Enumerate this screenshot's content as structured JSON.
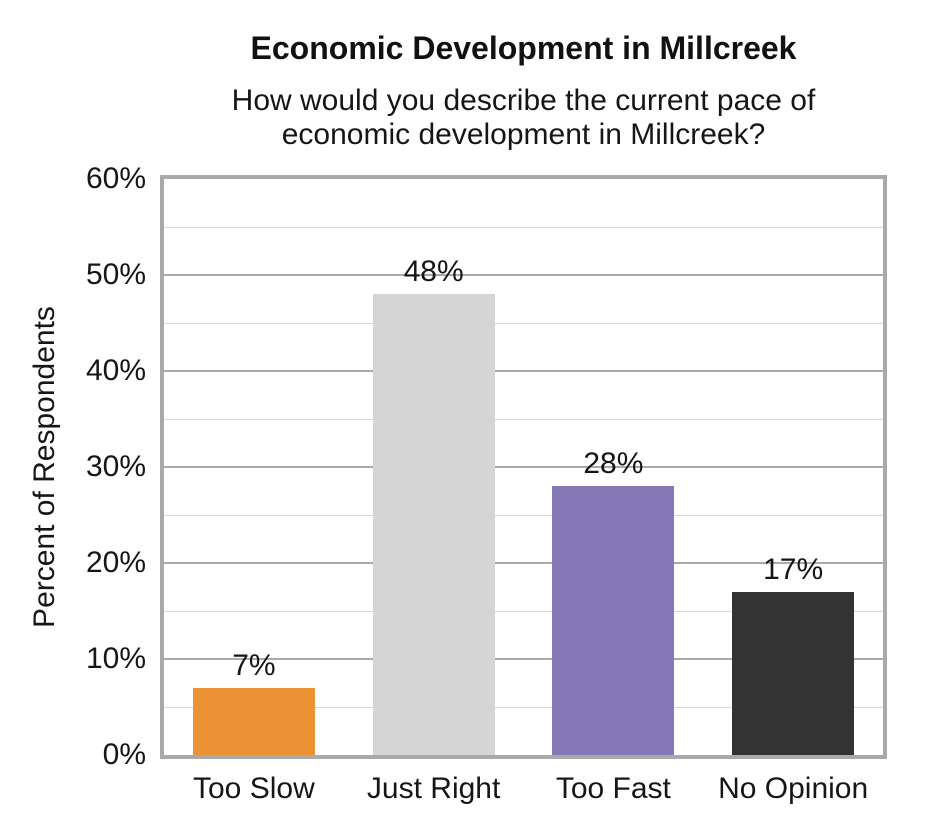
{
  "header": {
    "title": "Economic Development in Millcreek",
    "subtitle_lines": [
      "How would you describe the current pace of",
      "economic development in Millcreek?"
    ]
  },
  "chart_data": {
    "type": "bar",
    "title": "Economic Development in Millcreek",
    "subtitle": "How would you describe the current pace of economic development in Millcreek?",
    "categories": [
      "Too Slow",
      "Just Right",
      "Too Fast",
      "No Opinion"
    ],
    "values": [
      7,
      48,
      28,
      17
    ],
    "data_labels": [
      "7%",
      "48%",
      "28%",
      "17%"
    ],
    "bar_colors": [
      "#ea9234",
      "#d5d5d5",
      "#8678b7",
      "#333333"
    ],
    "xlabel": "",
    "ylabel": "Percent of Respondents",
    "ylim": [
      0,
      60
    ],
    "ytick_step": 10,
    "minor_grid_step": 5,
    "ytick_labels": [
      "0%",
      "10%",
      "20%",
      "30%",
      "40%",
      "50%",
      "60%"
    ],
    "grid": true,
    "legend": "none",
    "style_colors": {
      "plot_border": "#a9a9a9",
      "major_gridline": "#aaaaaa",
      "minor_gridline": "#d7d7d7",
      "text": "#161616",
      "background": "#ffffff"
    }
  }
}
